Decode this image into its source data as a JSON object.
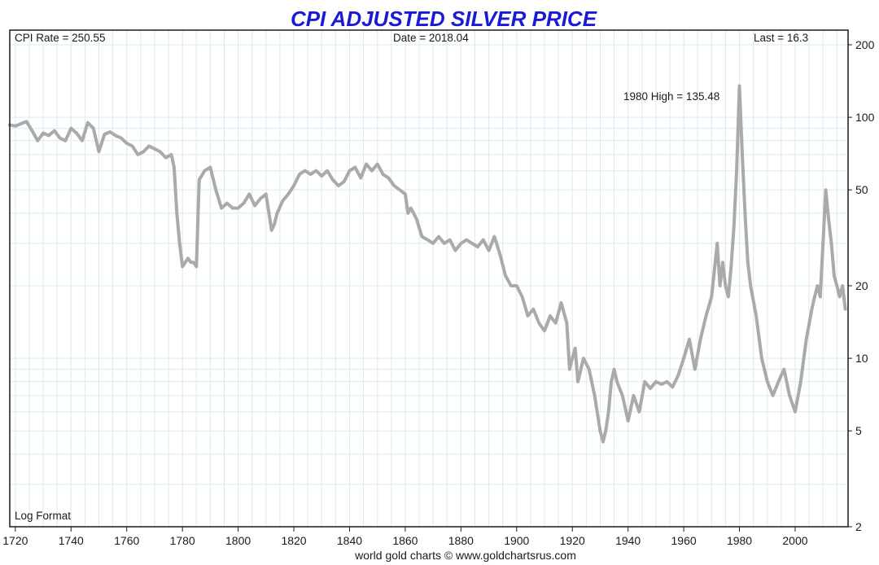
{
  "title": "CPI ADJUSTED SILVER PRICE",
  "info": {
    "cpi_rate": "CPI Rate = 250.55",
    "date": "Date = 2018.04",
    "last": "Last = 16.3"
  },
  "annotation": "1980 High = 135.48",
  "scale_note": "Log Format",
  "credit": "world gold charts © www.goldchartsrus.com",
  "colors": {
    "title": "#1a1ad6",
    "series": "#aaaaaa",
    "grid": "#d7ebf5",
    "frame": "#1a1a1a"
  },
  "chart_data": {
    "type": "line",
    "title": "CPI ADJUSTED SILVER PRICE",
    "y_scale": "log",
    "xlim": [
      1718,
      2019
    ],
    "ylim": [
      2,
      230
    ],
    "x_ticks": [
      1720,
      1740,
      1760,
      1780,
      1800,
      1820,
      1840,
      1860,
      1880,
      1900,
      1920,
      1940,
      1960,
      1980,
      2000
    ],
    "y_ticks": [
      2,
      5,
      10,
      20,
      50,
      100,
      200
    ],
    "grid": true,
    "annotations": [
      {
        "text": "1980 High = 135.48",
        "x": 1980,
        "y": 135.48
      }
    ],
    "series": [
      {
        "x": [
          1718,
          1720,
          1722,
          1724,
          1726,
          1728,
          1730,
          1732,
          1734,
          1736,
          1738,
          1740,
          1742,
          1744,
          1746,
          1748,
          1750,
          1752,
          1754,
          1756,
          1758,
          1760,
          1762,
          1764,
          1766,
          1768,
          1770,
          1772,
          1774,
          1776,
          1777,
          1778,
          1779,
          1780,
          1781,
          1782,
          1783,
          1784,
          1785,
          1786,
          1788,
          1790,
          1792,
          1794,
          1796,
          1798,
          1800,
          1802,
          1804,
          1806,
          1808,
          1810,
          1812,
          1813,
          1814,
          1816,
          1818,
          1820,
          1822,
          1824,
          1826,
          1828,
          1830,
          1832,
          1834,
          1836,
          1838,
          1840,
          1842,
          1844,
          1846,
          1848,
          1850,
          1852,
          1854,
          1856,
          1858,
          1860,
          1861,
          1862,
          1864,
          1866,
          1868,
          1870,
          1872,
          1874,
          1876,
          1878,
          1880,
          1882,
          1884,
          1886,
          1888,
          1890,
          1892,
          1894,
          1896,
          1898,
          1900,
          1902,
          1904,
          1906,
          1908,
          1910,
          1912,
          1914,
          1916,
          1918,
          1919,
          1920,
          1921,
          1922,
          1924,
          1926,
          1928,
          1930,
          1931,
          1932,
          1933,
          1934,
          1935,
          1936,
          1938,
          1940,
          1942,
          1944,
          1946,
          1948,
          1950,
          1952,
          1954,
          1956,
          1958,
          1960,
          1962,
          1964,
          1966,
          1968,
          1970,
          1972,
          1973,
          1974,
          1975,
          1976,
          1977,
          1978,
          1979,
          1980,
          1981,
          1982,
          1983,
          1984,
          1986,
          1988,
          1990,
          1992,
          1994,
          1996,
          1998,
          2000,
          2002,
          2004,
          2006,
          2007,
          2008,
          2009,
          2010,
          2011,
          2012,
          2013,
          2014,
          2015,
          2016,
          2017,
          2018
        ],
        "values": [
          93,
          92,
          94,
          96,
          88,
          80,
          86,
          84,
          88,
          82,
          80,
          90,
          86,
          80,
          95,
          90,
          72,
          85,
          87,
          84,
          82,
          78,
          76,
          70,
          72,
          76,
          74,
          72,
          68,
          70,
          62,
          40,
          30,
          24,
          25,
          26,
          25,
          25,
          24,
          55,
          60,
          62,
          50,
          42,
          44,
          42,
          42,
          44,
          48,
          43,
          46,
          48,
          34,
          36,
          40,
          45,
          48,
          52,
          58,
          60,
          58,
          60,
          57,
          60,
          55,
          52,
          54,
          60,
          62,
          56,
          64,
          60,
          64,
          58,
          56,
          52,
          50,
          48,
          40,
          42,
          38,
          32,
          31,
          30,
          32,
          30,
          31,
          28,
          30,
          31,
          30,
          29,
          31,
          28,
          32,
          27,
          22,
          20,
          20,
          18,
          15,
          16,
          14,
          13,
          15,
          14,
          17,
          14,
          9,
          10,
          11,
          8,
          10,
          9,
          7,
          5,
          4.5,
          5,
          6,
          8,
          9,
          8,
          7,
          5.5,
          7,
          6,
          8,
          7.5,
          8,
          7.8,
          8,
          7.6,
          8.5,
          10,
          12,
          9,
          12,
          15,
          18,
          30,
          20,
          25,
          20,
          18,
          24,
          35,
          60,
          135,
          70,
          40,
          25,
          20,
          15,
          10,
          8,
          7,
          8,
          9,
          7,
          6,
          8,
          12,
          16,
          18,
          20,
          18,
          30,
          50,
          38,
          30,
          22,
          20,
          18,
          20,
          16
        ]
      }
    ]
  }
}
